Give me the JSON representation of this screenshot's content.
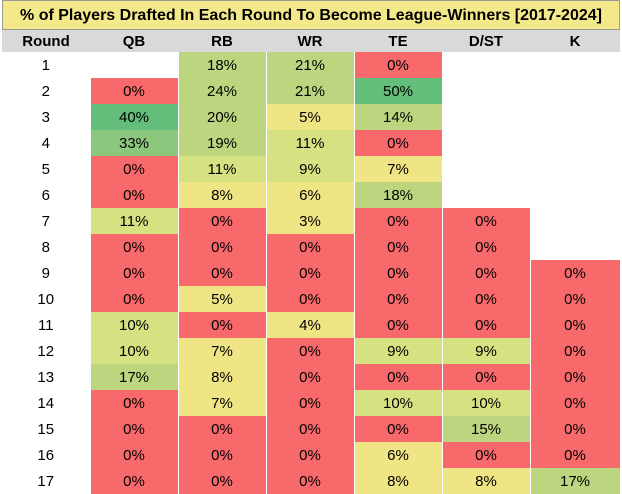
{
  "chart_data": {
    "type": "table",
    "title": "% of Players Drafted In Each Round To Become League-Winners [2017-2024]",
    "columns": [
      "Round",
      "QB",
      "RB",
      "WR",
      "TE",
      "D/ST",
      "K"
    ],
    "rows": [
      {
        "round": "1",
        "cells": [
          "",
          "18%",
          "21%",
          "0%",
          "",
          ""
        ]
      },
      {
        "round": "2",
        "cells": [
          "0%",
          "24%",
          "21%",
          "50%",
          "",
          ""
        ]
      },
      {
        "round": "3",
        "cells": [
          "40%",
          "20%",
          "5%",
          "14%",
          "",
          ""
        ]
      },
      {
        "round": "4",
        "cells": [
          "33%",
          "19%",
          "11%",
          "0%",
          "",
          ""
        ]
      },
      {
        "round": "5",
        "cells": [
          "0%",
          "11%",
          "9%",
          "7%",
          "",
          ""
        ]
      },
      {
        "round": "6",
        "cells": [
          "0%",
          "8%",
          "6%",
          "18%",
          "",
          ""
        ]
      },
      {
        "round": "7",
        "cells": [
          "11%",
          "0%",
          "3%",
          "0%",
          "0%",
          ""
        ]
      },
      {
        "round": "8",
        "cells": [
          "0%",
          "0%",
          "0%",
          "0%",
          "0%",
          ""
        ]
      },
      {
        "round": "9",
        "cells": [
          "0%",
          "0%",
          "0%",
          "0%",
          "0%",
          "0%"
        ]
      },
      {
        "round": "10",
        "cells": [
          "0%",
          "5%",
          "0%",
          "0%",
          "0%",
          "0%"
        ]
      },
      {
        "round": "11",
        "cells": [
          "10%",
          "0%",
          "4%",
          "0%",
          "0%",
          "0%"
        ]
      },
      {
        "round": "12",
        "cells": [
          "10%",
          "7%",
          "0%",
          "9%",
          "9%",
          "0%"
        ]
      },
      {
        "round": "13",
        "cells": [
          "17%",
          "8%",
          "0%",
          "0%",
          "0%",
          "0%"
        ]
      },
      {
        "round": "14",
        "cells": [
          "0%",
          "7%",
          "0%",
          "10%",
          "10%",
          "0%"
        ]
      },
      {
        "round": "15",
        "cells": [
          "0%",
          "0%",
          "0%",
          "0%",
          "15%",
          "0%"
        ]
      },
      {
        "round": "16",
        "cells": [
          "0%",
          "0%",
          "0%",
          "6%",
          "0%",
          "0%"
        ]
      },
      {
        "round": "17",
        "cells": [
          "0%",
          "0%",
          "0%",
          "8%",
          "8%",
          "17%"
        ]
      }
    ]
  }
}
